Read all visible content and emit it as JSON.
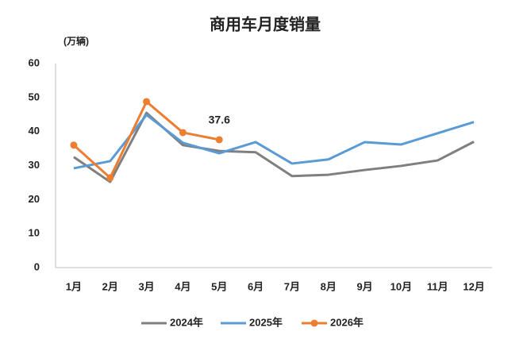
{
  "chart_data": {
    "type": "line",
    "title": "商用车月度销量",
    "y_axis_label": "(万辆)",
    "categories": [
      "1月",
      "2月",
      "3月",
      "4月",
      "5月",
      "6月",
      "7月",
      "8月",
      "9月",
      "10月",
      "11月",
      "12月"
    ],
    "series": [
      {
        "name": "2024年",
        "color": "#7f7f7f",
        "markers": false,
        "values": [
          32.5,
          25.2,
          45.5,
          36,
          34.3,
          33.9,
          26.9,
          27.3,
          28.7,
          29.9,
          31.5,
          37
        ]
      },
      {
        "name": "2025年",
        "color": "#5b9bd5",
        "markers": false,
        "values": [
          29.2,
          31.3,
          44.9,
          36.7,
          33.6,
          36.9,
          30.6,
          31.8,
          36.9,
          36.2,
          39.5,
          42.8
        ]
      },
      {
        "name": "2026年",
        "color": "#ed7d31",
        "markers": true,
        "values": [
          36,
          26.4,
          48.8,
          39.7,
          37.6,
          null,
          null,
          null,
          null,
          null,
          null,
          null
        ]
      }
    ],
    "labeled_points": [
      {
        "series": 2,
        "index": 4
      }
    ],
    "ylim": [
      0,
      60
    ],
    "yticks": [
      0,
      10,
      20,
      30,
      40,
      50,
      60
    ],
    "grid": false,
    "legend": "bottom"
  }
}
